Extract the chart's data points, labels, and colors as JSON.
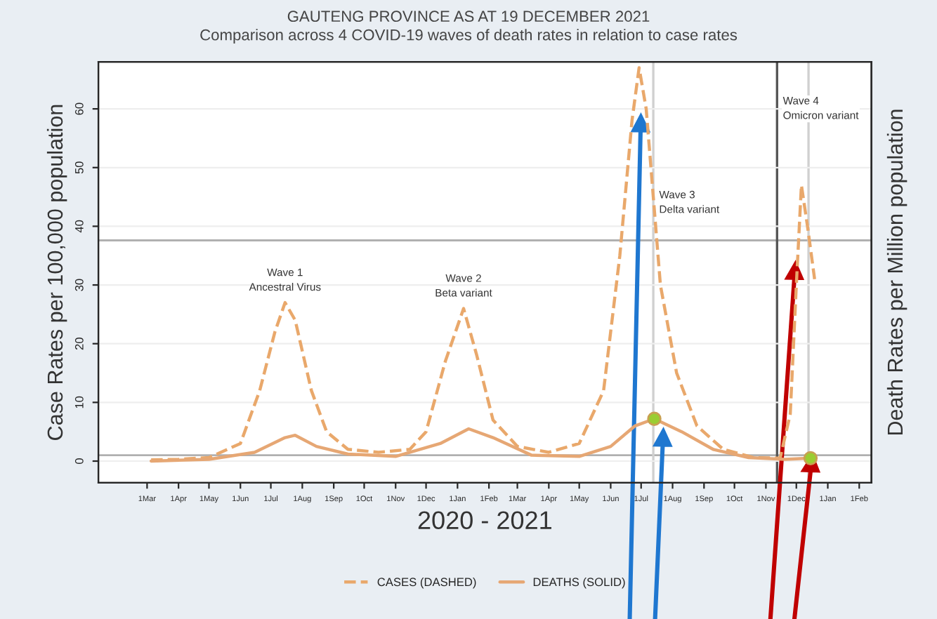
{
  "chart_data": {
    "type": "line",
    "title": "GAUTENG PROVINCE AS AT 19 DECEMBER 2021",
    "subtitle": "Comparison across 4 COVID-19 waves of death rates in relation to case rates",
    "xlabel": "2020 - 2021",
    "ylabel": "Case Rates per 100,000 population",
    "y2label": "Death Rates per Million population",
    "series": [
      {
        "name": "CASES (DASHED)",
        "color": "#e9a86b",
        "line_style": "dashed",
        "x": [
          "2020-03-05",
          "2020-04-01",
          "2020-05-01",
          "2020-06-01",
          "2020-06-20",
          "2020-07-05",
          "2020-07-15",
          "2020-07-25",
          "2020-08-10",
          "2020-08-25",
          "2020-09-15",
          "2020-10-15",
          "2020-11-15",
          "2020-12-01",
          "2020-12-20",
          "2021-01-07",
          "2021-01-20",
          "2021-02-05",
          "2021-03-01",
          "2021-04-01",
          "2021-05-01",
          "2021-05-25",
          "2021-06-10",
          "2021-06-22",
          "2021-06-29",
          "2021-07-06",
          "2021-07-20",
          "2021-08-05",
          "2021-08-25",
          "2021-09-20",
          "2021-10-20",
          "2021-11-15",
          "2021-11-25",
          "2021-12-01",
          "2021-12-06",
          "2021-12-12",
          "2021-12-19"
        ],
        "values": [
          0.2,
          0.3,
          0.6,
          3,
          12,
          22,
          27,
          24,
          12,
          5,
          2,
          1.5,
          2,
          5,
          17,
          26,
          18,
          7,
          2.5,
          1.5,
          3,
          12,
          35,
          58,
          67,
          60,
          30,
          15,
          6,
          2,
          0.6,
          0.5,
          8,
          30,
          47,
          40,
          31
        ]
      },
      {
        "name": "DEATHS (SOLID)",
        "color": "#e6a774",
        "line_style": "solid",
        "x": [
          "2020-03-05",
          "2020-05-01",
          "2020-06-15",
          "2020-07-15",
          "2020-07-25",
          "2020-08-15",
          "2020-09-15",
          "2020-11-01",
          "2020-12-15",
          "2021-01-12",
          "2021-02-05",
          "2021-03-15",
          "2021-05-01",
          "2021-06-01",
          "2021-06-25",
          "2021-07-14",
          "2021-08-10",
          "2021-09-10",
          "2021-10-15",
          "2021-11-20",
          "2021-12-15"
        ],
        "values": [
          0,
          0.3,
          1.5,
          4,
          4.4,
          2.5,
          1.2,
          0.8,
          3,
          5.5,
          4,
          1,
          0.8,
          2.5,
          6,
          7.2,
          5,
          2,
          0.6,
          0.3,
          0.5
        ]
      },
      {
        "type": "scatter",
        "color": "#9acd32",
        "marker": "circle",
        "x": [
          "2021-07-14",
          "2021-12-15"
        ],
        "values": [
          7.2,
          0.5
        ]
      }
    ],
    "xlim": [
      "2020-01-13",
      "2022-02-13"
    ],
    "xticks": [
      {
        "value": "2020-03-01",
        "label": "1Mar"
      },
      {
        "value": "2020-04-01",
        "label": "1Apr"
      },
      {
        "value": "2020-05-01",
        "label": "1May"
      },
      {
        "value": "2020-06-01",
        "label": "1Jun"
      },
      {
        "value": "2020-07-01",
        "label": "1Jul"
      },
      {
        "value": "2020-08-01",
        "label": "1Aug"
      },
      {
        "value": "2020-09-01",
        "label": "1Sep"
      },
      {
        "value": "2020-10-01",
        "label": "1Oct"
      },
      {
        "value": "2020-11-01",
        "label": "1Nov"
      },
      {
        "value": "2020-12-01",
        "label": "1Dec"
      },
      {
        "value": "2021-01-01",
        "label": "1Jan"
      },
      {
        "value": "2021-02-01",
        "label": "1Feb"
      },
      {
        "value": "2021-03-01",
        "label": "1Mar"
      },
      {
        "value": "2021-04-01",
        "label": "1Apr"
      },
      {
        "value": "2021-05-01",
        "label": "1May"
      },
      {
        "value": "2021-06-01",
        "label": "1Jun"
      },
      {
        "value": "2021-07-01",
        "label": "1Jul"
      },
      {
        "value": "2021-08-01",
        "label": "1Aug"
      },
      {
        "value": "2021-09-01",
        "label": "1Sep"
      },
      {
        "value": "2021-10-01",
        "label": "1Oct"
      },
      {
        "value": "2021-11-01",
        "label": "1Nov"
      },
      {
        "value": "2021-12-01",
        "label": "1Dec"
      },
      {
        "value": "2022-01-01",
        "label": "1Jan"
      },
      {
        "value": "2022-02-01",
        "label": "1Feb"
      }
    ],
    "ylim": [
      -3.7,
      68
    ],
    "yticks": [
      0,
      10,
      20,
      30,
      40,
      50,
      60
    ],
    "grid": "y",
    "legend": "bottom",
    "ref_lines": [
      {
        "axis": "y",
        "value": 37.6,
        "color": "#b0b0b0"
      },
      {
        "axis": "y",
        "value": 1,
        "color": "#b0b0b0"
      },
      {
        "axis": "x",
        "value": "2021-11-12",
        "color": "#555555"
      },
      {
        "axis": "x",
        "value": "2021-07-13",
        "color": "#d0d0d0"
      },
      {
        "axis": "x",
        "value": "2021-12-13",
        "color": "#d0d0d0"
      }
    ],
    "annotations": [
      {
        "text": "Wave 1\nAncestral Virus",
        "x": "2020-07-15",
        "y": 27
      },
      {
        "text": "Wave 2\nBeta variant",
        "x": "2021-01-07",
        "y": 26
      },
      {
        "text": "Wave 3\nDelta variant",
        "x": "2021-07-13",
        "y": 44
      },
      {
        "text": "Wave 4\nOmicron variant",
        "x": "2021-11-12",
        "y": 60
      }
    ]
  }
}
